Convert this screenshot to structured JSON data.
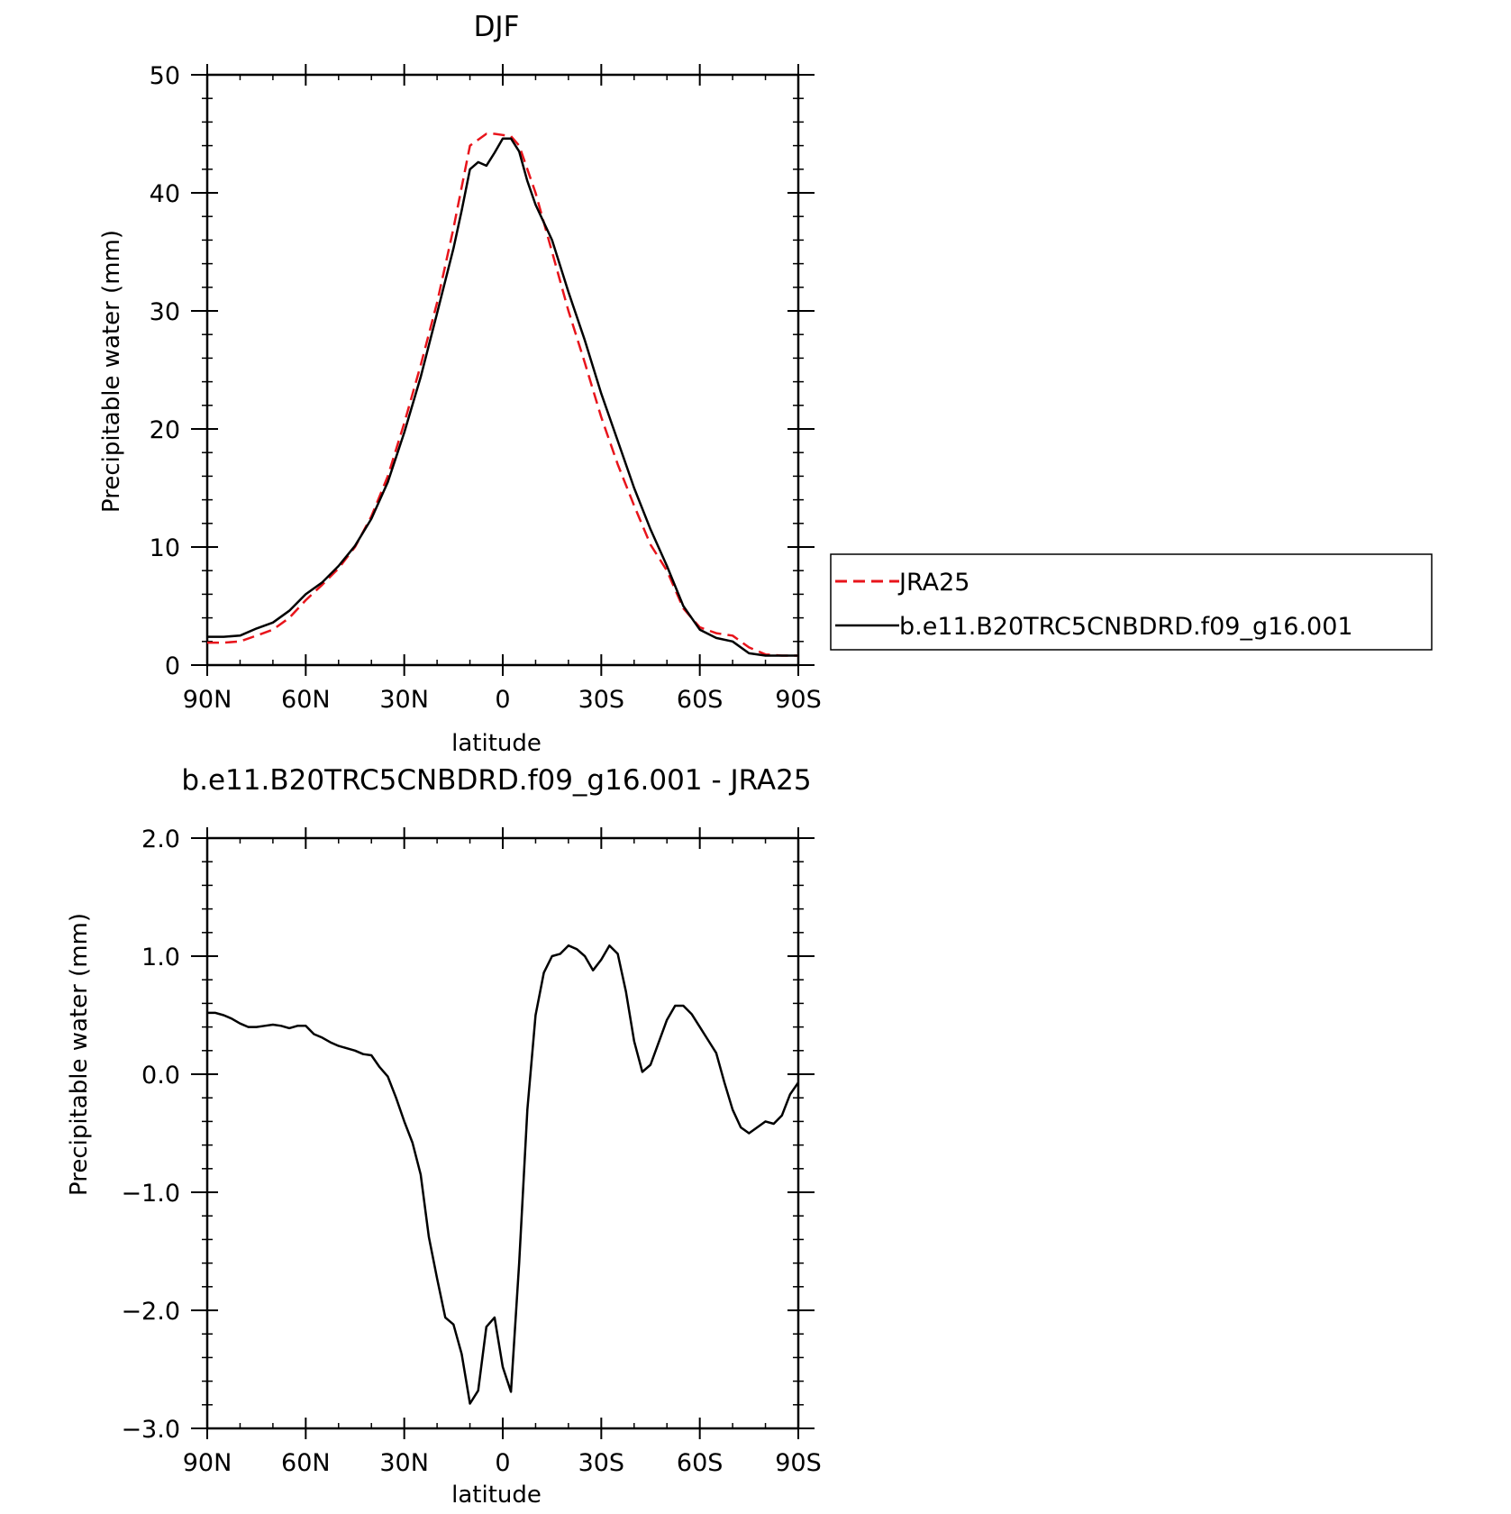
{
  "chart_data": [
    {
      "type": "line",
      "title": "DJF",
      "xlabel": "latitude",
      "ylabel": "Precipitable water (mm)",
      "xlim": [
        90,
        -90
      ],
      "ylim": [
        0,
        50
      ],
      "x_ticks": [
        90,
        60,
        30,
        0,
        -30,
        -60,
        -90
      ],
      "x_tick_labels": [
        "90N",
        "60N",
        "30N",
        "0",
        "30S",
        "60S",
        "90S"
      ],
      "y_ticks": [
        0,
        10,
        20,
        30,
        40,
        50
      ],
      "y_tick_labels": [
        "0",
        "10",
        "20",
        "30",
        "40",
        "50"
      ],
      "x_unit_note": "latitude, positive = N, negative = S",
      "legend_position": "right-outside",
      "series": [
        {
          "name": "JRA25",
          "color": "#e8141b",
          "dash": "dashed",
          "x": [
            90,
            85,
            80,
            75,
            70,
            65,
            60,
            55,
            50,
            45,
            40,
            35,
            30,
            25,
            20,
            15,
            10,
            5,
            2.5,
            0,
            -2.5,
            -5,
            -7.5,
            -10,
            -15,
            -20,
            -25,
            -30,
            -35,
            -40,
            -45,
            -50,
            -55,
            -60,
            -65,
            -70,
            -75,
            -80,
            -85,
            -90
          ],
          "y": [
            1.9,
            1.9,
            2.0,
            2.5,
            3.0,
            4.0,
            5.5,
            6.8,
            8.2,
            10.0,
            12.6,
            16.0,
            20.5,
            25.4,
            30.7,
            37.0,
            44.0,
            45.0,
            45.0,
            44.9,
            44.8,
            44.0,
            42.0,
            40.0,
            35.0,
            30.0,
            25.6,
            21.0,
            17.0,
            13.5,
            10.2,
            8.0,
            4.8,
            3.2,
            2.7,
            2.5,
            1.5,
            0.9,
            0.8,
            0.8
          ]
        },
        {
          "name": "b.e11.B20TRC5CNBDRD.f09_g16.001",
          "color": "#000000",
          "dash": "solid",
          "x": [
            90,
            85,
            80,
            75,
            70,
            65,
            60,
            55,
            50,
            45,
            40,
            35,
            30,
            25,
            20,
            15,
            12.5,
            10,
            7.5,
            5,
            2.5,
            0,
            -2.5,
            -5,
            -7.5,
            -10,
            -15,
            -20,
            -25,
            -30,
            -35,
            -40,
            -45,
            -50,
            -55,
            -60,
            -65,
            -70,
            -75,
            -80,
            -85,
            -90
          ],
          "y": [
            2.4,
            2.4,
            2.5,
            3.1,
            3.6,
            4.6,
            6.0,
            7.0,
            8.4,
            10.1,
            12.4,
            15.5,
            19.7,
            24.4,
            29.8,
            35.3,
            38.5,
            42.0,
            42.6,
            42.3,
            43.4,
            44.6,
            44.6,
            43.5,
            41.0,
            39.0,
            36.0,
            31.6,
            27.5,
            23.0,
            19.0,
            15.0,
            11.5,
            8.4,
            5.0,
            3.0,
            2.3,
            2.0,
            1.0,
            0.8,
            0.8,
            0.8
          ]
        }
      ]
    },
    {
      "type": "line",
      "title": "b.e11.B20TRC5CNBDRD.f09_g16.001 - JRA25",
      "xlabel": "latitude",
      "ylabel": "Precipitable water (mm)",
      "xlim": [
        90,
        -90
      ],
      "ylim": [
        -3.0,
        2.0
      ],
      "x_ticks": [
        90,
        60,
        30,
        0,
        -30,
        -60,
        -90
      ],
      "x_tick_labels": [
        "90N",
        "60N",
        "30N",
        "0",
        "30S",
        "60S",
        "90S"
      ],
      "y_ticks": [
        -3.0,
        -2.0,
        -1.0,
        0.0,
        1.0,
        2.0
      ],
      "y_tick_labels": [
        "−3.0",
        "−2.0",
        "−1.0",
        "0.0",
        "1.0",
        "2.0"
      ],
      "series": [
        {
          "color": "#000000",
          "dash": "solid",
          "x": [
            90,
            87.5,
            85,
            82.5,
            80,
            77.5,
            75,
            72.5,
            70,
            67.5,
            65,
            62.5,
            60,
            57.5,
            55,
            52.5,
            50,
            47.5,
            45,
            42.5,
            40,
            37.5,
            35,
            32.5,
            30,
            27.5,
            25,
            22.5,
            20,
            17.5,
            15,
            12.5,
            10,
            7.5,
            5,
            2.5,
            0,
            -2.5,
            -5,
            -7.5,
            -10,
            -12.5,
            -15,
            -17.5,
            -20,
            -22.5,
            -25,
            -27.5,
            -30,
            -32.5,
            -35,
            -37.5,
            -40,
            -42.5,
            -45,
            -47.5,
            -50,
            -52.5,
            -55,
            -57.5,
            -60,
            -62.5,
            -65,
            -67.5,
            -70,
            -72.5,
            -75,
            -77.5,
            -80,
            -82.5,
            -85,
            -87.5,
            -90
          ],
          "y": [
            0.52,
            0.52,
            0.5,
            0.47,
            0.43,
            0.4,
            0.4,
            0.41,
            0.42,
            0.41,
            0.39,
            0.41,
            0.41,
            0.34,
            0.31,
            0.27,
            0.24,
            0.22,
            0.2,
            0.17,
            0.16,
            0.06,
            -0.02,
            -0.2,
            -0.4,
            -0.58,
            -0.85,
            -1.38,
            -1.73,
            -2.06,
            -2.12,
            -2.37,
            -2.79,
            -2.68,
            -2.14,
            -2.06,
            -2.48,
            -2.69,
            -1.6,
            -0.3,
            0.5,
            0.86,
            1.0,
            1.02,
            1.09,
            1.06,
            1.0,
            0.88,
            0.97,
            1.09,
            1.02,
            0.7,
            0.28,
            0.02,
            0.08,
            0.27,
            0.46,
            0.58,
            0.58,
            0.51,
            0.4,
            0.29,
            0.18,
            -0.07,
            -0.3,
            -0.45,
            -0.5,
            -0.45,
            -0.4,
            -0.42,
            -0.35,
            -0.17,
            -0.07
          ]
        }
      ]
    }
  ],
  "legend": {
    "entries": [
      {
        "label": "JRA25",
        "color": "#e8141b",
        "dash": "dashed"
      },
      {
        "label": "b.e11.B20TRC5CNBDRD.f09_g16.001",
        "color": "#000000",
        "dash": "solid"
      }
    ]
  }
}
